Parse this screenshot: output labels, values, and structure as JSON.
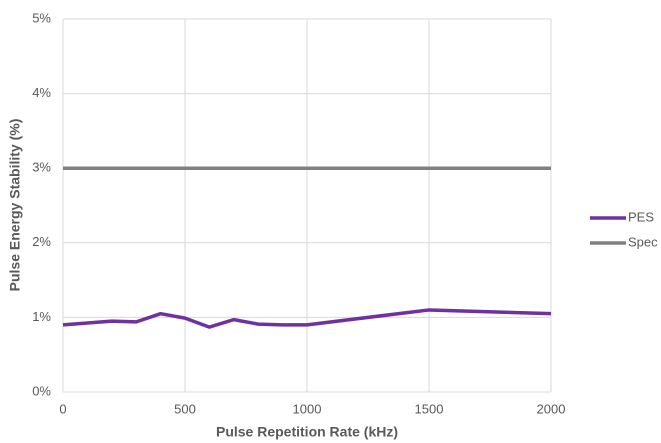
{
  "chart_data": {
    "type": "line",
    "xlabel": "Pulse Repetition Rate (kHz)",
    "ylabel": "Pulse Energy Stability (%)",
    "xlim": [
      0,
      2000
    ],
    "xticks": [
      0,
      500,
      1000,
      1500,
      2000
    ],
    "ylim": [
      0,
      5
    ],
    "yticks": [
      {
        "value": 0,
        "label": "0%"
      },
      {
        "value": 1,
        "label": "1%"
      },
      {
        "value": 2,
        "label": "2%"
      },
      {
        "value": 3,
        "label": "3%"
      },
      {
        "value": 4,
        "label": "4%"
      },
      {
        "value": 5,
        "label": "5%"
      }
    ],
    "grid": true,
    "legend": "right",
    "series": [
      {
        "name": "PES",
        "color": "#7030a0",
        "x": [
          0,
          200,
          300,
          400,
          500,
          600,
          700,
          800,
          900,
          1000,
          1500,
          2000
        ],
        "values": [
          0.9,
          0.95,
          0.94,
          1.05,
          0.99,
          0.87,
          0.97,
          0.91,
          0.9,
          0.9,
          1.1,
          1.05
        ]
      },
      {
        "name": "Spec",
        "color": "#808080",
        "x": [
          0,
          2000
        ],
        "values": [
          3,
          3
        ]
      }
    ]
  }
}
